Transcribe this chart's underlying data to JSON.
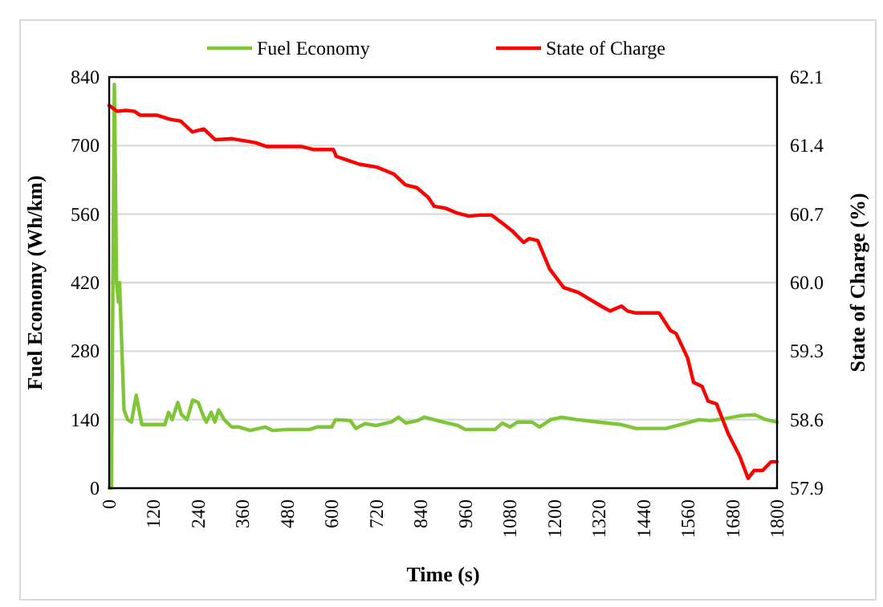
{
  "chart_data": {
    "type": "line",
    "xlabel": "Time (s)",
    "ylabel": "Fuel Economy (Wh/km)",
    "y2label": "State of Charge (%)",
    "xlim": [
      0,
      1800
    ],
    "xticks": [
      0,
      120,
      240,
      360,
      480,
      600,
      720,
      840,
      960,
      1080,
      1200,
      1320,
      1440,
      1560,
      1680,
      1800
    ],
    "ylim": [
      0,
      840
    ],
    "yticks": [
      0,
      140,
      280,
      420,
      560,
      700,
      840
    ],
    "y2lim": [
      57.9,
      62.1
    ],
    "y2ticks": [
      57.9,
      58.6,
      59.3,
      {
        "value": 60,
        "label": "60.0"
      },
      60.7,
      61.4,
      62.1
    ],
    "grid": "y",
    "legend": "top",
    "line_style": "solid",
    "marker": "none",
    "series": [
      {
        "name": "Fuel Economy",
        "color": "#7ec636",
        "x": [
          0,
          6,
          14,
          20,
          25,
          28,
          40,
          50,
          60,
          73,
          88,
          150,
          160,
          170,
          185,
          195,
          210,
          225,
          240,
          255,
          262,
          275,
          285,
          295,
          310,
          330,
          350,
          380,
          420,
          440,
          480,
          540,
          560,
          600,
          610,
          650,
          665,
          690,
          720,
          760,
          780,
          800,
          830,
          850,
          900,
          940,
          960,
          1040,
          1060,
          1080,
          1100,
          1140,
          1160,
          1190,
          1220,
          1260,
          1320,
          1380,
          1420,
          1500,
          1540,
          1590,
          1620,
          1660,
          1700,
          1740,
          1770,
          1800
        ],
        "values": [
          0,
          0,
          825,
          420,
          380,
          420,
          160,
          140,
          135,
          190,
          130,
          130,
          155,
          140,
          175,
          150,
          140,
          180,
          175,
          145,
          135,
          155,
          135,
          160,
          140,
          125,
          125,
          118,
          125,
          118,
          120,
          120,
          125,
          125,
          140,
          138,
          122,
          132,
          128,
          135,
          145,
          133,
          138,
          145,
          135,
          128,
          120,
          120,
          133,
          125,
          135,
          135,
          125,
          140,
          145,
          140,
          135,
          130,
          122,
          122,
          130,
          140,
          138,
          142,
          148,
          150,
          140,
          135
        ]
      },
      {
        "name": "State of Charge",
        "color": "#ff0000",
        "axis": "y2",
        "x": [
          0,
          22,
          45,
          68,
          84,
          130,
          162,
          193,
          224,
          255,
          286,
          332,
          394,
          425,
          519,
          550,
          604,
          612,
          643,
          674,
          721,
          767,
          798,
          829,
          860,
          876,
          907,
          938,
          969,
          1000,
          1031,
          1062,
          1086,
          1117,
          1132,
          1155,
          1187,
          1225,
          1264,
          1326,
          1350,
          1381,
          1397,
          1419,
          1482,
          1513,
          1528,
          1559,
          1575,
          1598,
          1614,
          1637,
          1668,
          1699,
          1722,
          1738,
          1761,
          1784,
          1800
        ],
        "values": [
          61.81,
          61.75,
          61.76,
          61.75,
          61.71,
          61.71,
          61.67,
          61.65,
          61.54,
          61.57,
          61.46,
          61.47,
          61.43,
          61.39,
          61.39,
          61.36,
          61.36,
          61.29,
          61.25,
          61.21,
          61.18,
          61.11,
          61.0,
          60.97,
          60.87,
          60.78,
          60.76,
          60.71,
          60.68,
          60.69,
          60.69,
          60.6,
          60.53,
          60.41,
          60.45,
          60.43,
          60.14,
          59.95,
          59.9,
          59.76,
          59.71,
          59.76,
          59.71,
          59.69,
          59.69,
          59.51,
          59.48,
          59.23,
          58.98,
          58.94,
          58.79,
          58.76,
          58.46,
          58.23,
          58.0,
          58.08,
          58.08,
          58.17,
          58.17
        ]
      }
    ]
  }
}
